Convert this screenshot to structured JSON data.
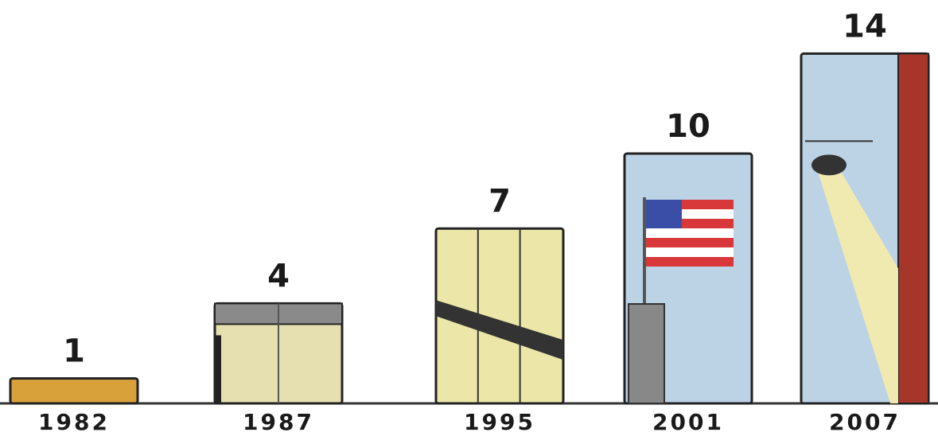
{
  "chart_data": {
    "type": "bar",
    "categories": [
      "1982",
      "1987",
      "1995",
      "2001",
      "2007"
    ],
    "values": [
      1,
      4,
      7,
      10,
      14
    ],
    "colors": [
      "#d9a13a",
      "#e6dfb0",
      "#ece7a9",
      "#bcd3e6",
      "#bcd3e6"
    ]
  }
}
